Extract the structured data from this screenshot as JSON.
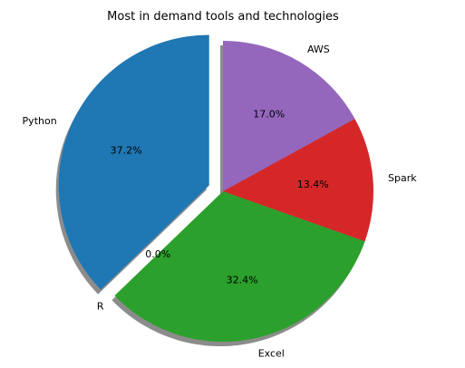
{
  "chart_data": {
    "type": "pie",
    "title": "Most in demand tools and technologies",
    "categories": [
      "Python",
      "R",
      "Excel",
      "Spark",
      "AWS"
    ],
    "values": [
      37.2,
      0.0,
      32.4,
      13.4,
      17.0
    ],
    "value_labels": [
      "37.2%",
      "0.0%",
      "32.4%",
      "13.4%",
      "17.0%"
    ],
    "colors": [
      "#1f77b4",
      "#ff7f0e",
      "#2ca02c",
      "#d62728",
      "#9467bd"
    ],
    "explode": [
      0.1,
      0,
      0,
      0,
      0
    ],
    "start_angle_deg": 90,
    "direction": "counterclockwise",
    "shadow": true
  }
}
